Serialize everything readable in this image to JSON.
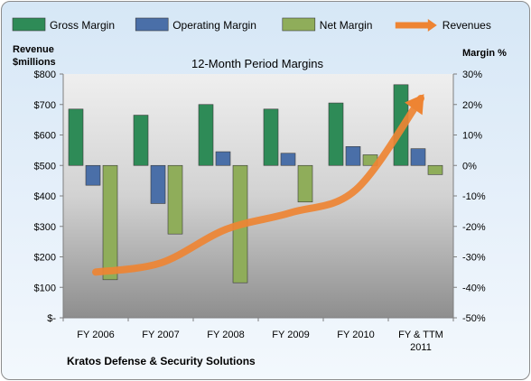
{
  "chart_data": {
    "type": "bar",
    "title": "12-Month Period Margins",
    "company": "Kratos Defense & Security Solutions",
    "categories": [
      "FY 2006",
      "FY 2007",
      "FY 2008",
      "FY 2009",
      "FY 2010",
      "FY & TTM 2011"
    ],
    "y_left": {
      "label_line1": "Revenue",
      "label_line2": "$millions",
      "range": [
        0,
        800
      ],
      "ticks": [
        0,
        100,
        200,
        300,
        400,
        500,
        600,
        700,
        800
      ],
      "tick_labels": [
        "$-",
        "$100",
        "$200",
        "$300",
        "$400",
        "$500",
        "$600",
        "$700",
        "$800"
      ]
    },
    "y_right": {
      "label": "Margin %",
      "range": [
        -50,
        30
      ],
      "ticks": [
        -50,
        -40,
        -30,
        -20,
        -10,
        0,
        10,
        20,
        30
      ],
      "tick_labels": [
        "-50%",
        "-40%",
        "-30%",
        "-20%",
        "-10%",
        "0%",
        "10%",
        "20%",
        "30%"
      ]
    },
    "series": [
      {
        "name": "Gross Margin",
        "axis": "right",
        "kind": "bar",
        "color": "#2e8b57",
        "values": [
          18.5,
          16.5,
          20,
          18.5,
          20.5,
          26.5
        ]
      },
      {
        "name": "Operating Margin",
        "axis": "right",
        "kind": "bar",
        "color": "#4a6fa8",
        "values": [
          -6.5,
          -12.5,
          4.5,
          4,
          6.2,
          5.5
        ]
      },
      {
        "name": "Net Margin",
        "axis": "right",
        "kind": "bar",
        "color": "#8fad5a",
        "values": [
          -37.5,
          -22.5,
          -38.5,
          -12,
          3.5,
          -3
        ]
      },
      {
        "name": "Revenues",
        "axis": "left",
        "kind": "arrow",
        "color": "#ee8433",
        "values": [
          150,
          180,
          290,
          345,
          420,
          720
        ]
      }
    ],
    "legend_position": "top",
    "grid": false
  }
}
